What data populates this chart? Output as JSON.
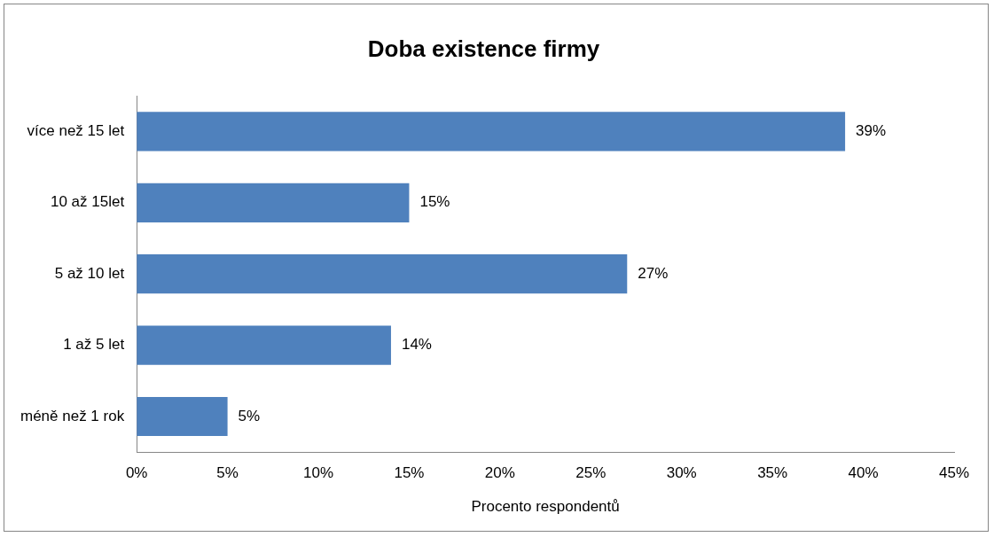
{
  "chart_data": {
    "type": "bar",
    "orientation": "horizontal",
    "title": "Doba existence firmy",
    "xlabel": "Procento respondentů",
    "categories": [
      "více než 15 let",
      "10 až 15let",
      "5 až 10 let",
      "1 až 5 let",
      "méně než 1 rok"
    ],
    "values": [
      39,
      15,
      27,
      14,
      5
    ],
    "color": "#4f81bd",
    "value_labels": [
      "39%",
      "15%",
      "27%",
      "14%",
      "5%"
    ],
    "xlim": [
      0,
      45
    ],
    "xticks": [
      {
        "value": 0,
        "label": "0%"
      },
      {
        "value": 5,
        "label": "5%"
      },
      {
        "value": 10,
        "label": "10%"
      },
      {
        "value": 15,
        "label": "15%"
      },
      {
        "value": 20,
        "label": "20%"
      },
      {
        "value": 25,
        "label": "25%"
      },
      {
        "value": 30,
        "label": "30%"
      },
      {
        "value": 35,
        "label": "35%"
      },
      {
        "value": 40,
        "label": "40%"
      },
      {
        "value": 45,
        "label": "45%"
      }
    ],
    "grid": false,
    "legend": false
  }
}
